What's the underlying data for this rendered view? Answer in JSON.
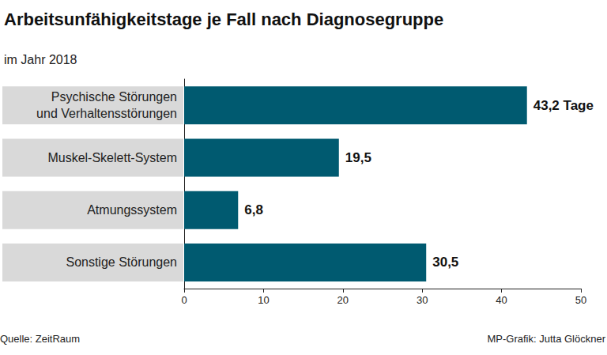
{
  "chart_data": {
    "type": "bar",
    "orientation": "horizontal",
    "title": "Arbeitsunfähigkeitstage je Fall nach Diagnosegruppe",
    "subtitle": "im Jahr 2018",
    "categories": [
      "Psychische Störungen\nund Verhaltensstörungen",
      "Muskel-Skelett-System",
      "Atmungssystem",
      "Sonstige Störungen"
    ],
    "values": [
      43.2,
      19.5,
      6.8,
      30.5
    ],
    "value_labels": [
      "43,2 Tage",
      "19,5",
      "6,8",
      "30,5"
    ],
    "data_labels": true,
    "color": "#005a70",
    "xlim": [
      0,
      50
    ],
    "xticks": [
      0,
      10,
      20,
      30,
      40,
      50
    ],
    "grid": false,
    "source": "Quelle: ZeitRaum",
    "credit": "MP-Grafik: Jutta Glöckner"
  }
}
